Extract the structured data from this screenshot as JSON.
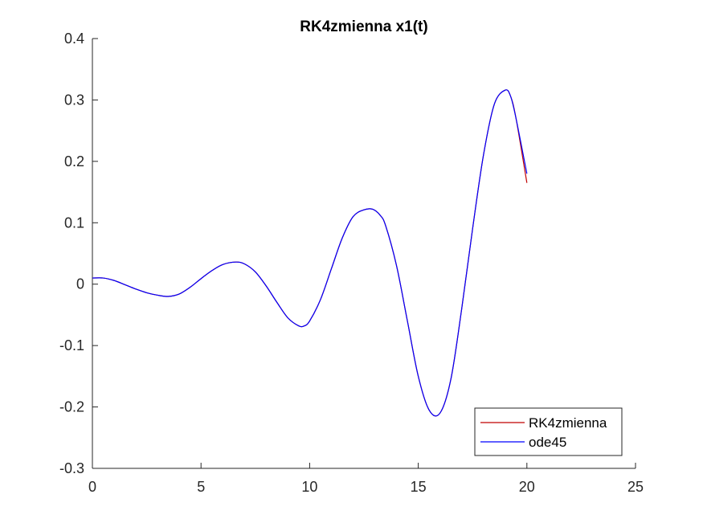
{
  "chart_data": {
    "type": "line",
    "title": "RK4zmienna x1(t)",
    "xlabel": "",
    "ylabel": "",
    "xlim": [
      0,
      25
    ],
    "ylim": [
      -0.3,
      0.4
    ],
    "xticks": [
      "0",
      "5",
      "10",
      "15",
      "20",
      "25"
    ],
    "yticks": [
      "-0.3",
      "-0.2",
      "-0.1",
      "0",
      "0.1",
      "0.2",
      "0.3",
      "0.4"
    ],
    "grid": false,
    "legend_position": "bottom-right",
    "x": [
      0,
      0.5,
      1,
      1.5,
      2,
      2.5,
      3,
      3.5,
      4,
      4.5,
      5,
      5.5,
      6,
      6.6,
      7,
      7.5,
      8,
      8.5,
      9,
      9.5,
      9.75,
      10,
      10.5,
      11,
      11.5,
      12,
      12.5,
      12.9,
      13.25,
      13.5,
      14,
      14.5,
      15,
      15.5,
      16,
      16.5,
      17,
      17.5,
      18,
      18.5,
      19,
      19.25,
      19.5,
      20
    ],
    "series": [
      {
        "name": "RK4zmienna",
        "color": "#c00000",
        "values": [
          0.01,
          0.01,
          0.006,
          -0.001,
          -0.008,
          -0.014,
          -0.018,
          -0.02,
          -0.016,
          -0.005,
          0.009,
          0.022,
          0.032,
          0.036,
          0.033,
          0.02,
          -0.003,
          -0.03,
          -0.055,
          -0.068,
          -0.068,
          -0.06,
          -0.025,
          0.025,
          0.075,
          0.11,
          0.121,
          0.122,
          0.112,
          0.095,
          0.03,
          -0.06,
          -0.15,
          -0.205,
          -0.21,
          -0.155,
          -0.04,
          0.09,
          0.21,
          0.293,
          0.316,
          0.306,
          0.27,
          0.165
        ]
      },
      {
        "name": "ode45",
        "color": "#0000ff",
        "values": [
          0.01,
          0.01,
          0.006,
          -0.001,
          -0.008,
          -0.014,
          -0.018,
          -0.02,
          -0.016,
          -0.005,
          0.009,
          0.022,
          0.032,
          0.036,
          0.033,
          0.02,
          -0.003,
          -0.03,
          -0.055,
          -0.068,
          -0.068,
          -0.06,
          -0.025,
          0.025,
          0.075,
          0.11,
          0.121,
          0.122,
          0.112,
          0.095,
          0.03,
          -0.06,
          -0.15,
          -0.205,
          -0.21,
          -0.155,
          -0.04,
          0.09,
          0.21,
          0.293,
          0.316,
          0.306,
          0.27,
          0.18
        ]
      }
    ]
  }
}
